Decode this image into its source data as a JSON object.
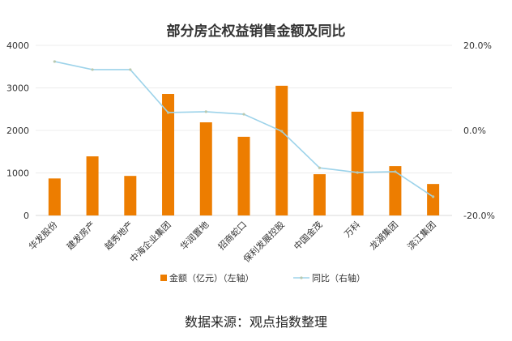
{
  "chart_data": {
    "type": "bar",
    "title": "部分房企权益销售金额及同比",
    "categories": [
      "华发股份",
      "建发房产",
      "越秀地产",
      "中海企业集团",
      "华润置地",
      "招商蛇口",
      "保利发展控股",
      "中国金茂",
      "万科",
      "龙湖集团",
      "滨江集团"
    ],
    "series": [
      {
        "name": "金额（亿元）（左轴）",
        "type": "bar",
        "axis": "left",
        "color": "#ED7D00",
        "values": [
          870,
          1390,
          930,
          2857,
          2190,
          1850,
          3050,
          970,
          2440,
          1160,
          740
        ]
      },
      {
        "name": "同比（右轴）",
        "type": "line",
        "axis": "right",
        "color": "#9DD3EA",
        "values": [
          16.2,
          14.3,
          14.3,
          4.2,
          4.4,
          3.8,
          -0.2,
          -8.8,
          -9.9,
          -9.7,
          -15.6
        ]
      }
    ],
    "left_axis": {
      "ylim": [
        0,
        4000
      ],
      "ticks": [
        "0",
        "1000",
        "2000",
        "3000",
        "4000"
      ],
      "tick_values": [
        0,
        1000,
        2000,
        3000,
        4000
      ]
    },
    "right_axis": {
      "ylim": [
        -20,
        20
      ],
      "ticks": [
        "-20.0%",
        "0.0%",
        "20.0%"
      ],
      "tick_values": [
        -20,
        0,
        20
      ]
    },
    "grid": true,
    "legend_position": "bottom"
  },
  "source": "数据来源：观点指数整理"
}
